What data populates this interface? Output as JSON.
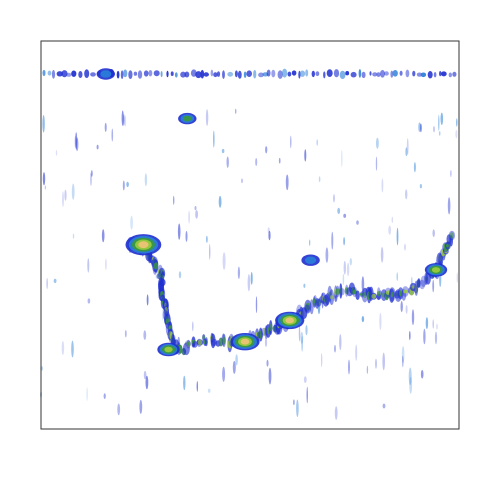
{
  "chart_data": {
    "type": "heatmap",
    "title": "",
    "xlabel": "",
    "ylabel": "",
    "axes_shown": false,
    "tick_labels_shown": false,
    "frame": true,
    "grid": false,
    "legend": "none",
    "colors": {
      "background": "#ffffff",
      "frame": "#333333",
      "low": "#1f2fd0",
      "mid_low": "#2a7fd8",
      "mid": "#3c9a3a",
      "mid_high": "#9ccd3c",
      "high": "#f2c27a"
    },
    "color_levels": [
      "low",
      "mid_low",
      "mid",
      "mid_high",
      "high"
    ],
    "features": [
      {
        "name": "surface-line",
        "kind": "band",
        "y": 0.915,
        "x_start": 0.0,
        "x_end": 1.0,
        "intensity": 1
      },
      {
        "name": "bottom-trace",
        "kind": "trace",
        "points": [
          [
            0.21,
            0.47
          ],
          [
            0.245,
            0.475
          ],
          [
            0.285,
            0.405
          ],
          [
            0.305,
            0.26
          ],
          [
            0.33,
            0.2
          ],
          [
            0.38,
            0.23
          ],
          [
            0.46,
            0.225
          ],
          [
            0.53,
            0.245
          ],
          [
            0.6,
            0.285
          ],
          [
            0.665,
            0.33
          ],
          [
            0.73,
            0.36
          ],
          [
            0.8,
            0.34
          ],
          [
            0.88,
            0.35
          ],
          [
            0.945,
            0.41
          ],
          [
            0.985,
            0.5
          ]
        ],
        "intensity": 2
      },
      {
        "name": "hotspot-1",
        "kind": "blob",
        "x": 0.245,
        "y": 0.475,
        "size": 0.025,
        "intensity": 4
      },
      {
        "name": "hotspot-2",
        "kind": "blob",
        "x": 0.488,
        "y": 0.225,
        "size": 0.02,
        "intensity": 4
      },
      {
        "name": "hotspot-3",
        "kind": "blob",
        "x": 0.595,
        "y": 0.28,
        "size": 0.02,
        "intensity": 4
      },
      {
        "name": "hotspot-4",
        "kind": "blob",
        "x": 0.945,
        "y": 0.41,
        "size": 0.015,
        "intensity": 3
      },
      {
        "name": "hotspot-5",
        "kind": "blob",
        "x": 0.305,
        "y": 0.205,
        "size": 0.015,
        "intensity": 3
      },
      {
        "name": "target-1",
        "kind": "blob",
        "x": 0.645,
        "y": 0.435,
        "size": 0.012,
        "intensity": 1
      },
      {
        "name": "target-2",
        "kind": "blob",
        "x": 0.35,
        "y": 0.8,
        "size": 0.012,
        "intensity": 2
      },
      {
        "name": "target-3",
        "kind": "blob",
        "x": 0.155,
        "y": 0.915,
        "size": 0.012,
        "intensity": 1
      }
    ]
  }
}
